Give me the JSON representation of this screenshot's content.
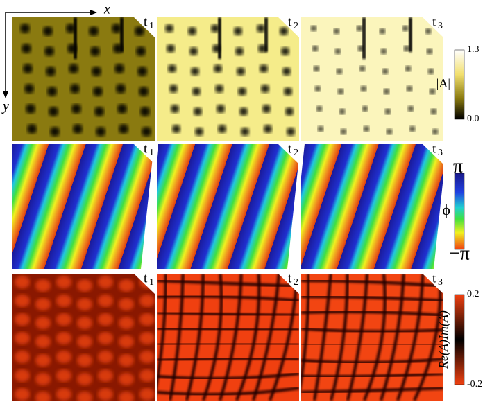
{
  "axes": {
    "x": "x",
    "y": "y"
  },
  "rows": [
    {
      "panels": [
        {
          "label": "t",
          "subscript": "1"
        },
        {
          "label": "t",
          "subscript": "2"
        },
        {
          "label": "t",
          "subscript": "3"
        }
      ],
      "colorbar": {
        "max": "1.3",
        "min": "0.0",
        "label": "|A|"
      }
    },
    {
      "panels": [
        {
          "label": "t",
          "subscript": "1"
        },
        {
          "label": "t",
          "subscript": "2"
        },
        {
          "label": "t",
          "subscript": "3"
        }
      ],
      "colorbar": {
        "max": "π",
        "min": "−π",
        "label": "ϕ"
      }
    },
    {
      "panels": [
        {
          "label": "t",
          "subscript": "1"
        },
        {
          "label": "t",
          "subscript": "2"
        },
        {
          "label": "t",
          "subscript": "3"
        }
      ],
      "colorbar": {
        "max": "0.2",
        "min": "-0.2",
        "label": "Re(A)Im(A)"
      }
    }
  ]
}
